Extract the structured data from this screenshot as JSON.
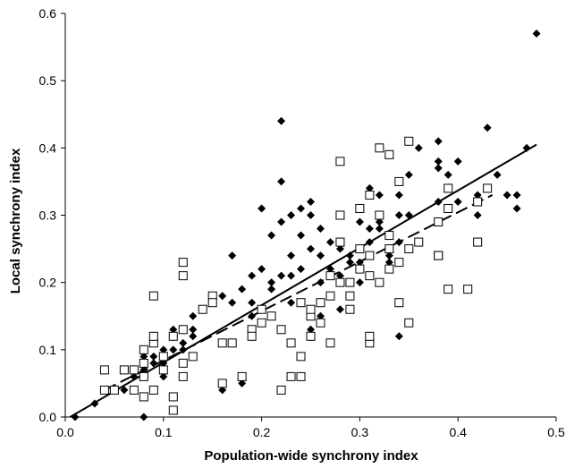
{
  "chart_data": {
    "type": "scatter",
    "title": "",
    "xlabel": "Population-wide synchrony index",
    "ylabel": "Local synchrony index",
    "xlim": [
      0,
      0.5
    ],
    "ylim": [
      0,
      0.6
    ],
    "xticks": [
      "0.0",
      "0.1",
      "0.2",
      "0.3",
      "0.4",
      "0.5"
    ],
    "yticks": [
      "0.0",
      "0.1",
      "0.2",
      "0.3",
      "0.4",
      "0.5",
      "0.6"
    ],
    "grid": false,
    "legend": false,
    "series": [
      {
        "marker": "diamond-filled",
        "color": "#000000",
        "points": [
          [
            0.01,
            0.0
          ],
          [
            0.03,
            0.02
          ],
          [
            0.06,
            0.04
          ],
          [
            0.07,
            0.06
          ],
          [
            0.08,
            0.07
          ],
          [
            0.08,
            0.09
          ],
          [
            0.08,
            0.1
          ],
          [
            0.09,
            0.08
          ],
          [
            0.09,
            0.09
          ],
          [
            0.1,
            0.06
          ],
          [
            0.1,
            0.08
          ],
          [
            0.1,
            0.1
          ],
          [
            0.11,
            0.1
          ],
          [
            0.11,
            0.13
          ],
          [
            0.12,
            0.1
          ],
          [
            0.12,
            0.11
          ],
          [
            0.13,
            0.12
          ],
          [
            0.13,
            0.13
          ],
          [
            0.13,
            0.15
          ],
          [
            0.14,
            0.16
          ],
          [
            0.15,
            0.17
          ],
          [
            0.16,
            0.18
          ],
          [
            0.16,
            0.04
          ],
          [
            0.17,
            0.17
          ],
          [
            0.18,
            0.05
          ],
          [
            0.17,
            0.24
          ],
          [
            0.18,
            0.19
          ],
          [
            0.19,
            0.15
          ],
          [
            0.19,
            0.21
          ],
          [
            0.19,
            0.17
          ],
          [
            0.2,
            0.22
          ],
          [
            0.2,
            0.31
          ],
          [
            0.21,
            0.2
          ],
          [
            0.21,
            0.27
          ],
          [
            0.21,
            0.19
          ],
          [
            0.22,
            0.21
          ],
          [
            0.22,
            0.29
          ],
          [
            0.22,
            0.44
          ],
          [
            0.22,
            0.35
          ],
          [
            0.23,
            0.21
          ],
          [
            0.23,
            0.17
          ],
          [
            0.23,
            0.24
          ],
          [
            0.23,
            0.3
          ],
          [
            0.24,
            0.22
          ],
          [
            0.24,
            0.27
          ],
          [
            0.24,
            0.31
          ],
          [
            0.24,
            0.17
          ],
          [
            0.25,
            0.25
          ],
          [
            0.25,
            0.3
          ],
          [
            0.25,
            0.32
          ],
          [
            0.25,
            0.13
          ],
          [
            0.26,
            0.2
          ],
          [
            0.26,
            0.24
          ],
          [
            0.26,
            0.28
          ],
          [
            0.26,
            0.15
          ],
          [
            0.27,
            0.22
          ],
          [
            0.27,
            0.26
          ],
          [
            0.27,
            0.18
          ],
          [
            0.28,
            0.25
          ],
          [
            0.28,
            0.21
          ],
          [
            0.28,
            0.3
          ],
          [
            0.28,
            0.16
          ],
          [
            0.29,
            0.24
          ],
          [
            0.29,
            0.23
          ],
          [
            0.29,
            0.2
          ],
          [
            0.3,
            0.29
          ],
          [
            0.3,
            0.23
          ],
          [
            0.3,
            0.2
          ],
          [
            0.31,
            0.26
          ],
          [
            0.31,
            0.28
          ],
          [
            0.31,
            0.24
          ],
          [
            0.31,
            0.34
          ],
          [
            0.32,
            0.29
          ],
          [
            0.32,
            0.33
          ],
          [
            0.32,
            0.28
          ],
          [
            0.33,
            0.39
          ],
          [
            0.33,
            0.23
          ],
          [
            0.33,
            0.24
          ],
          [
            0.34,
            0.26
          ],
          [
            0.34,
            0.3
          ],
          [
            0.34,
            0.33
          ],
          [
            0.34,
            0.12
          ],
          [
            0.35,
            0.36
          ],
          [
            0.35,
            0.3
          ],
          [
            0.36,
            0.26
          ],
          [
            0.36,
            0.4
          ],
          [
            0.38,
            0.38
          ],
          [
            0.38,
            0.41
          ],
          [
            0.38,
            0.37
          ],
          [
            0.38,
            0.32
          ],
          [
            0.39,
            0.36
          ],
          [
            0.4,
            0.38
          ],
          [
            0.4,
            0.32
          ],
          [
            0.42,
            0.33
          ],
          [
            0.42,
            0.3
          ],
          [
            0.43,
            0.43
          ],
          [
            0.44,
            0.36
          ],
          [
            0.45,
            0.33
          ],
          [
            0.46,
            0.31
          ],
          [
            0.46,
            0.33
          ],
          [
            0.47,
            0.4
          ],
          [
            0.48,
            0.57
          ],
          [
            0.08,
            0.0
          ]
        ]
      },
      {
        "marker": "square-open",
        "color": "#000000",
        "points": [
          [
            0.04,
            0.07
          ],
          [
            0.04,
            0.04
          ],
          [
            0.05,
            0.04
          ],
          [
            0.06,
            0.07
          ],
          [
            0.07,
            0.04
          ],
          [
            0.07,
            0.07
          ],
          [
            0.08,
            0.03
          ],
          [
            0.08,
            0.06
          ],
          [
            0.08,
            0.08
          ],
          [
            0.08,
            0.1
          ],
          [
            0.09,
            0.04
          ],
          [
            0.09,
            0.11
          ],
          [
            0.09,
            0.18
          ],
          [
            0.09,
            0.12
          ],
          [
            0.1,
            0.07
          ],
          [
            0.1,
            0.09
          ],
          [
            0.11,
            0.01
          ],
          [
            0.11,
            0.03
          ],
          [
            0.11,
            0.12
          ],
          [
            0.12,
            0.06
          ],
          [
            0.12,
            0.08
          ],
          [
            0.12,
            0.23
          ],
          [
            0.12,
            0.13
          ],
          [
            0.12,
            0.21
          ],
          [
            0.13,
            0.09
          ],
          [
            0.14,
            0.16
          ],
          [
            0.15,
            0.18
          ],
          [
            0.15,
            0.17
          ],
          [
            0.16,
            0.05
          ],
          [
            0.16,
            0.11
          ],
          [
            0.17,
            0.11
          ],
          [
            0.18,
            0.06
          ],
          [
            0.19,
            0.13
          ],
          [
            0.19,
            0.12
          ],
          [
            0.2,
            0.14
          ],
          [
            0.2,
            0.16
          ],
          [
            0.21,
            0.15
          ],
          [
            0.22,
            0.13
          ],
          [
            0.22,
            0.04
          ],
          [
            0.23,
            0.11
          ],
          [
            0.23,
            0.06
          ],
          [
            0.24,
            0.06
          ],
          [
            0.24,
            0.17
          ],
          [
            0.24,
            0.09
          ],
          [
            0.25,
            0.15
          ],
          [
            0.25,
            0.12
          ],
          [
            0.25,
            0.16
          ],
          [
            0.26,
            0.14
          ],
          [
            0.26,
            0.17
          ],
          [
            0.27,
            0.18
          ],
          [
            0.27,
            0.21
          ],
          [
            0.27,
            0.11
          ],
          [
            0.28,
            0.26
          ],
          [
            0.28,
            0.2
          ],
          [
            0.28,
            0.3
          ],
          [
            0.28,
            0.38
          ],
          [
            0.29,
            0.18
          ],
          [
            0.29,
            0.16
          ],
          [
            0.29,
            0.2
          ],
          [
            0.3,
            0.22
          ],
          [
            0.3,
            0.25
          ],
          [
            0.3,
            0.31
          ],
          [
            0.31,
            0.11
          ],
          [
            0.31,
            0.12
          ],
          [
            0.31,
            0.21
          ],
          [
            0.31,
            0.24
          ],
          [
            0.31,
            0.33
          ],
          [
            0.32,
            0.3
          ],
          [
            0.32,
            0.2
          ],
          [
            0.32,
            0.4
          ],
          [
            0.33,
            0.27
          ],
          [
            0.33,
            0.25
          ],
          [
            0.33,
            0.22
          ],
          [
            0.33,
            0.39
          ],
          [
            0.34,
            0.17
          ],
          [
            0.34,
            0.23
          ],
          [
            0.34,
            0.35
          ],
          [
            0.35,
            0.41
          ],
          [
            0.35,
            0.14
          ],
          [
            0.35,
            0.25
          ],
          [
            0.36,
            0.26
          ],
          [
            0.38,
            0.24
          ],
          [
            0.38,
            0.29
          ],
          [
            0.39,
            0.19
          ],
          [
            0.39,
            0.34
          ],
          [
            0.39,
            0.31
          ],
          [
            0.41,
            0.19
          ],
          [
            0.42,
            0.26
          ],
          [
            0.42,
            0.32
          ],
          [
            0.43,
            0.34
          ],
          [
            0.38,
            0.24
          ]
        ]
      }
    ],
    "trendlines": [
      {
        "style": "solid",
        "color": "#000000",
        "from": [
          0.005,
          0.0
        ],
        "to": [
          0.48,
          0.405
        ]
      },
      {
        "style": "dashed",
        "color": "#000000",
        "from": [
          0.04,
          0.04
        ],
        "to": [
          0.435,
          0.33
        ]
      }
    ]
  }
}
